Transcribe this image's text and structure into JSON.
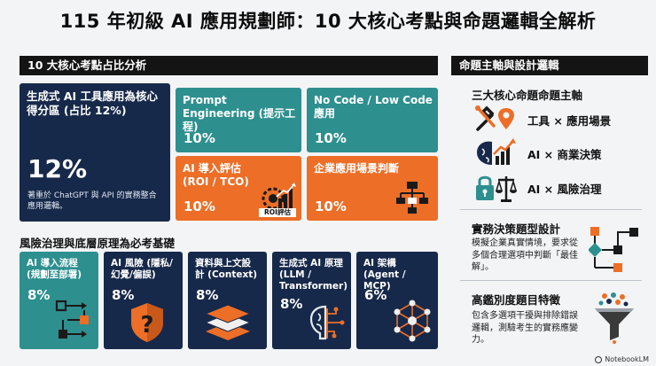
{
  "title": "115 年初級 AI 應用規劃師：10 大核心考點與命題邏輯全解析",
  "left_header": "10 大核心考點占比分析",
  "right_header": "命題主軸與設計邏輯",
  "top_cards": {
    "main": {
      "label": "生成式 AI 工具應用為核心得分區 (占比 12%)",
      "percent": "12%",
      "desc": "著重於 ChatGPT 與 API 的實務整合應用邏輯。"
    },
    "prompt": {
      "label": "Prompt Engineering (提示工程)",
      "percent": "10%"
    },
    "nocode": {
      "label": "No Code / Low Code 應用",
      "percent": "10%"
    },
    "roi": {
      "label": "AI 導入評估 (ROI / TCO)",
      "percent": "10%",
      "icon_caption": "ROI評估"
    },
    "scenario": {
      "label": "企業應用場景判斷",
      "percent": "10%"
    }
  },
  "section2_title": "風險治理與底層原理為必考基礎",
  "bottom_cards": [
    {
      "label": "AI 導入流程 (規劃至部署)",
      "percent": "8%",
      "icon": "workflow-icon"
    },
    {
      "label": "AI 風險 (隱私/幻覺/偏誤)",
      "percent": "8%",
      "icon": "shield-warning-icon"
    },
    {
      "label": "資料與上文設計 (Context)",
      "percent": "8%",
      "icon": "layers-icon"
    },
    {
      "label": "生成式 AI 原理 (LLM / Transformer)",
      "percent": "8%",
      "icon": "brain-circuit-icon"
    },
    {
      "label": "AI 架構 (Agent / MCP)",
      "percent": "6%",
      "icon": "network-icon"
    }
  ],
  "right": {
    "axes_title": "三大核心命題命題主軸",
    "axes": [
      {
        "text": "工具 × 應用場景",
        "icon": "tools-location-icon"
      },
      {
        "text": "AI × 商業決策",
        "icon": "brain-growth-icon"
      },
      {
        "text": "AI × 風險治理",
        "icon": "lock-scale-icon"
      }
    ],
    "practice_title": "實務決策題型設計",
    "practice_desc": "模擬企業真實情境，要求從多個合理選項中判斷「最佳解」。",
    "discrim_title": "高鑑別度題目特徵",
    "discrim_desc": "包含多選項干擾與排除錯誤邏輯，測驗考生的實務應變力。"
  },
  "footer": "NotebookLM",
  "colors": {
    "navy": "#17294a",
    "teal": "#2e8f8f",
    "orange": "#ec6e27",
    "bar": "#141414"
  }
}
